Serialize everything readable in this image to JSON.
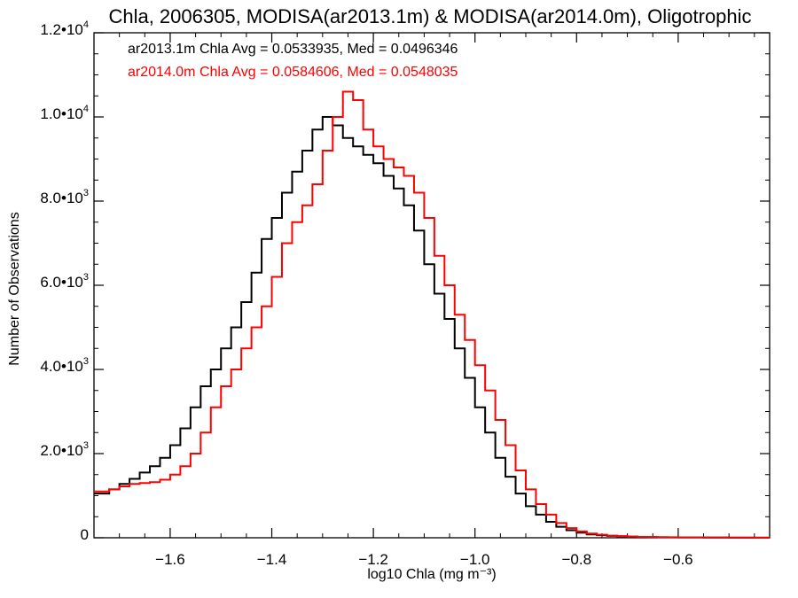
{
  "chart_data": {
    "type": "line",
    "title": "Chla, 2006305, MODISA(ar2013.1m) & MODISA(ar2014.0m), Oligotrophic",
    "xlabel": "log10 Chla (mg m⁻³)",
    "ylabel": "Number of Observations",
    "xlim": [
      -1.75,
      -0.42
    ],
    "ylim": [
      0,
      12000
    ],
    "x_ticks": [
      -1.6,
      -1.4,
      -1.2,
      -1.0,
      -0.8,
      -0.6
    ],
    "x_tick_labels": [
      "−1.6",
      "−1.4",
      "−1.2",
      "−1.0",
      "−0.8",
      "−0.6"
    ],
    "y_ticks": [
      0,
      2000,
      4000,
      6000,
      8000,
      10000,
      12000
    ],
    "y_tick_labels": [
      {
        "mant": "0",
        "exp": ""
      },
      {
        "mant": "2.0•10",
        "exp": "3"
      },
      {
        "mant": "4.0•10",
        "exp": "3"
      },
      {
        "mant": "6.0•10",
        "exp": "3"
      },
      {
        "mant": "8.0•10",
        "exp": "3"
      },
      {
        "mant": "1.0•10",
        "exp": "4"
      },
      {
        "mant": "1.2•10",
        "exp": "4"
      }
    ],
    "grid": false,
    "legend_position": "top-left",
    "series": [
      {
        "name": "ar2013.1m",
        "legend_text": "ar2013.1m Chla Avg = 0.0533935, Med = 0.0496346",
        "color": "#000000",
        "points": [
          [
            -1.75,
            1050
          ],
          [
            -1.72,
            1150
          ],
          [
            -1.7,
            1280
          ],
          [
            -1.68,
            1400
          ],
          [
            -1.66,
            1550
          ],
          [
            -1.64,
            1700
          ],
          [
            -1.62,
            1900
          ],
          [
            -1.6,
            2200
          ],
          [
            -1.58,
            2600
          ],
          [
            -1.56,
            3100
          ],
          [
            -1.54,
            3600
          ],
          [
            -1.52,
            4000
          ],
          [
            -1.5,
            4500
          ],
          [
            -1.48,
            5000
          ],
          [
            -1.46,
            5600
          ],
          [
            -1.44,
            6300
          ],
          [
            -1.42,
            7100
          ],
          [
            -1.4,
            7600
          ],
          [
            -1.38,
            8200
          ],
          [
            -1.36,
            8700
          ],
          [
            -1.34,
            9200
          ],
          [
            -1.32,
            9700
          ],
          [
            -1.3,
            10000
          ],
          [
            -1.28,
            9800
          ],
          [
            -1.26,
            9500
          ],
          [
            -1.24,
            9300
          ],
          [
            -1.22,
            9100
          ],
          [
            -1.2,
            8900
          ],
          [
            -1.18,
            8600
          ],
          [
            -1.16,
            8300
          ],
          [
            -1.14,
            7900
          ],
          [
            -1.12,
            7300
          ],
          [
            -1.1,
            6500
          ],
          [
            -1.08,
            5800
          ],
          [
            -1.06,
            5200
          ],
          [
            -1.04,
            4500
          ],
          [
            -1.02,
            3800
          ],
          [
            -1.0,
            3100
          ],
          [
            -0.98,
            2500
          ],
          [
            -0.96,
            1900
          ],
          [
            -0.94,
            1450
          ],
          [
            -0.92,
            1050
          ],
          [
            -0.9,
            750
          ],
          [
            -0.88,
            550
          ],
          [
            -0.86,
            380
          ],
          [
            -0.84,
            260
          ],
          [
            -0.82,
            180
          ],
          [
            -0.8,
            120
          ],
          [
            -0.78,
            80
          ],
          [
            -0.76,
            60
          ],
          [
            -0.74,
            45
          ],
          [
            -0.72,
            35
          ],
          [
            -0.7,
            25
          ],
          [
            -0.68,
            20
          ],
          [
            -0.66,
            15
          ],
          [
            -0.64,
            12
          ],
          [
            -0.62,
            10
          ],
          [
            -0.6,
            8
          ],
          [
            -0.55,
            5
          ],
          [
            -0.5,
            3
          ],
          [
            -0.45,
            2
          ],
          [
            -0.42,
            2
          ]
        ]
      },
      {
        "name": "ar2014.0m",
        "legend_text": "ar2014.0m Chla Avg = 0.0584606, Med = 0.0548035",
        "color": "#ff0000",
        "points": [
          [
            -1.75,
            1100
          ],
          [
            -1.72,
            1150
          ],
          [
            -1.7,
            1220
          ],
          [
            -1.68,
            1280
          ],
          [
            -1.66,
            1300
          ],
          [
            -1.64,
            1320
          ],
          [
            -1.62,
            1380
          ],
          [
            -1.6,
            1500
          ],
          [
            -1.58,
            1700
          ],
          [
            -1.56,
            2000
          ],
          [
            -1.54,
            2500
          ],
          [
            -1.52,
            3100
          ],
          [
            -1.5,
            3600
          ],
          [
            -1.48,
            4000
          ],
          [
            -1.46,
            4500
          ],
          [
            -1.44,
            5000
          ],
          [
            -1.42,
            5500
          ],
          [
            -1.4,
            6200
          ],
          [
            -1.38,
            7000
          ],
          [
            -1.36,
            7500
          ],
          [
            -1.34,
            7900
          ],
          [
            -1.32,
            8400
          ],
          [
            -1.3,
            9200
          ],
          [
            -1.28,
            10000
          ],
          [
            -1.26,
            10600
          ],
          [
            -1.24,
            10400
          ],
          [
            -1.22,
            9700
          ],
          [
            -1.2,
            9300
          ],
          [
            -1.18,
            9000
          ],
          [
            -1.16,
            8800
          ],
          [
            -1.14,
            8600
          ],
          [
            -1.12,
            8200
          ],
          [
            -1.1,
            7600
          ],
          [
            -1.08,
            6700
          ],
          [
            -1.06,
            6000
          ],
          [
            -1.04,
            5300
          ],
          [
            -1.02,
            4700
          ],
          [
            -1.0,
            4100
          ],
          [
            -0.98,
            3500
          ],
          [
            -0.96,
            2800
          ],
          [
            -0.94,
            2200
          ],
          [
            -0.92,
            1600
          ],
          [
            -0.9,
            1150
          ],
          [
            -0.88,
            800
          ],
          [
            -0.86,
            550
          ],
          [
            -0.84,
            350
          ],
          [
            -0.82,
            230
          ],
          [
            -0.8,
            150
          ],
          [
            -0.78,
            100
          ],
          [
            -0.76,
            70
          ],
          [
            -0.74,
            50
          ],
          [
            -0.72,
            40
          ],
          [
            -0.7,
            30
          ],
          [
            -0.68,
            22
          ],
          [
            -0.66,
            18
          ],
          [
            -0.64,
            14
          ],
          [
            -0.62,
            12
          ],
          [
            -0.6,
            10
          ],
          [
            -0.55,
            7
          ],
          [
            -0.5,
            5
          ],
          [
            -0.45,
            3
          ],
          [
            -0.42,
            3
          ]
        ]
      }
    ]
  }
}
